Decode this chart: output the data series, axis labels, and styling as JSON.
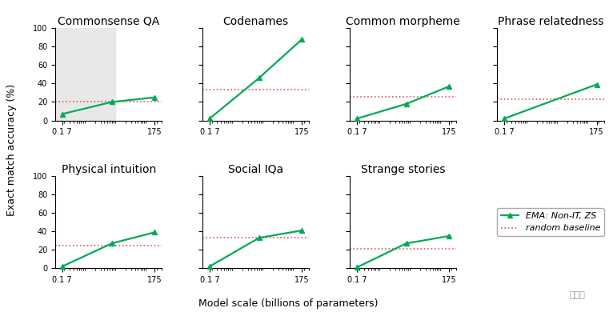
{
  "subplots": [
    {
      "title": "Commonsense QA",
      "x": [
        0.17,
        7,
        175
      ],
      "y": [
        7,
        20,
        25
      ],
      "random_baseline": 20,
      "shaded": true,
      "row": 0,
      "col": 0
    },
    {
      "title": "Codenames",
      "x": [
        0.17,
        7,
        175
      ],
      "y": [
        2,
        46,
        88
      ],
      "random_baseline": 33,
      "shaded": false,
      "row": 0,
      "col": 1
    },
    {
      "title": "Common morpheme",
      "x": [
        0.17,
        7,
        175
      ],
      "y": [
        2,
        18,
        37
      ],
      "random_baseline": 26,
      "shaded": false,
      "row": 0,
      "col": 2
    },
    {
      "title": "Phrase relatedness",
      "x": [
        0.17,
        175
      ],
      "y": [
        2,
        39
      ],
      "random_baseline": 23,
      "shaded": false,
      "row": 0,
      "col": 3
    },
    {
      "title": "Physical intuition",
      "x": [
        0.17,
        7,
        175
      ],
      "y": [
        2,
        27,
        39
      ],
      "random_baseline": 25,
      "shaded": false,
      "row": 1,
      "col": 0
    },
    {
      "title": "Social IQa",
      "x": [
        0.17,
        7,
        175
      ],
      "y": [
        2,
        33,
        41
      ],
      "random_baseline": 33,
      "shaded": false,
      "row": 1,
      "col": 1
    },
    {
      "title": "Strange stories",
      "x": [
        0.17,
        7,
        175
      ],
      "y": [
        1,
        27,
        35
      ],
      "random_baseline": 21,
      "shaded": false,
      "row": 1,
      "col": 2
    }
  ],
  "line_color": "#00aa55",
  "baseline_color": "#e05555",
  "marker": "^",
  "markersize": 5,
  "linewidth": 1.6,
  "xlabel": "Model scale (billions of parameters)",
  "ylabel": "Exact match accuracy (%)",
  "ylim": [
    0,
    100
  ],
  "yticks": [
    0,
    20,
    40,
    60,
    80,
    100
  ],
  "legend_ema": "EMA: Non-IT, ZS",
  "legend_baseline": "random baseline",
  "shaded_color": "#e8e8e8",
  "background_color": "#ffffff",
  "title_fontsize": 10,
  "label_fontsize": 9,
  "tick_fontsize": 7,
  "watermark": "新智元"
}
